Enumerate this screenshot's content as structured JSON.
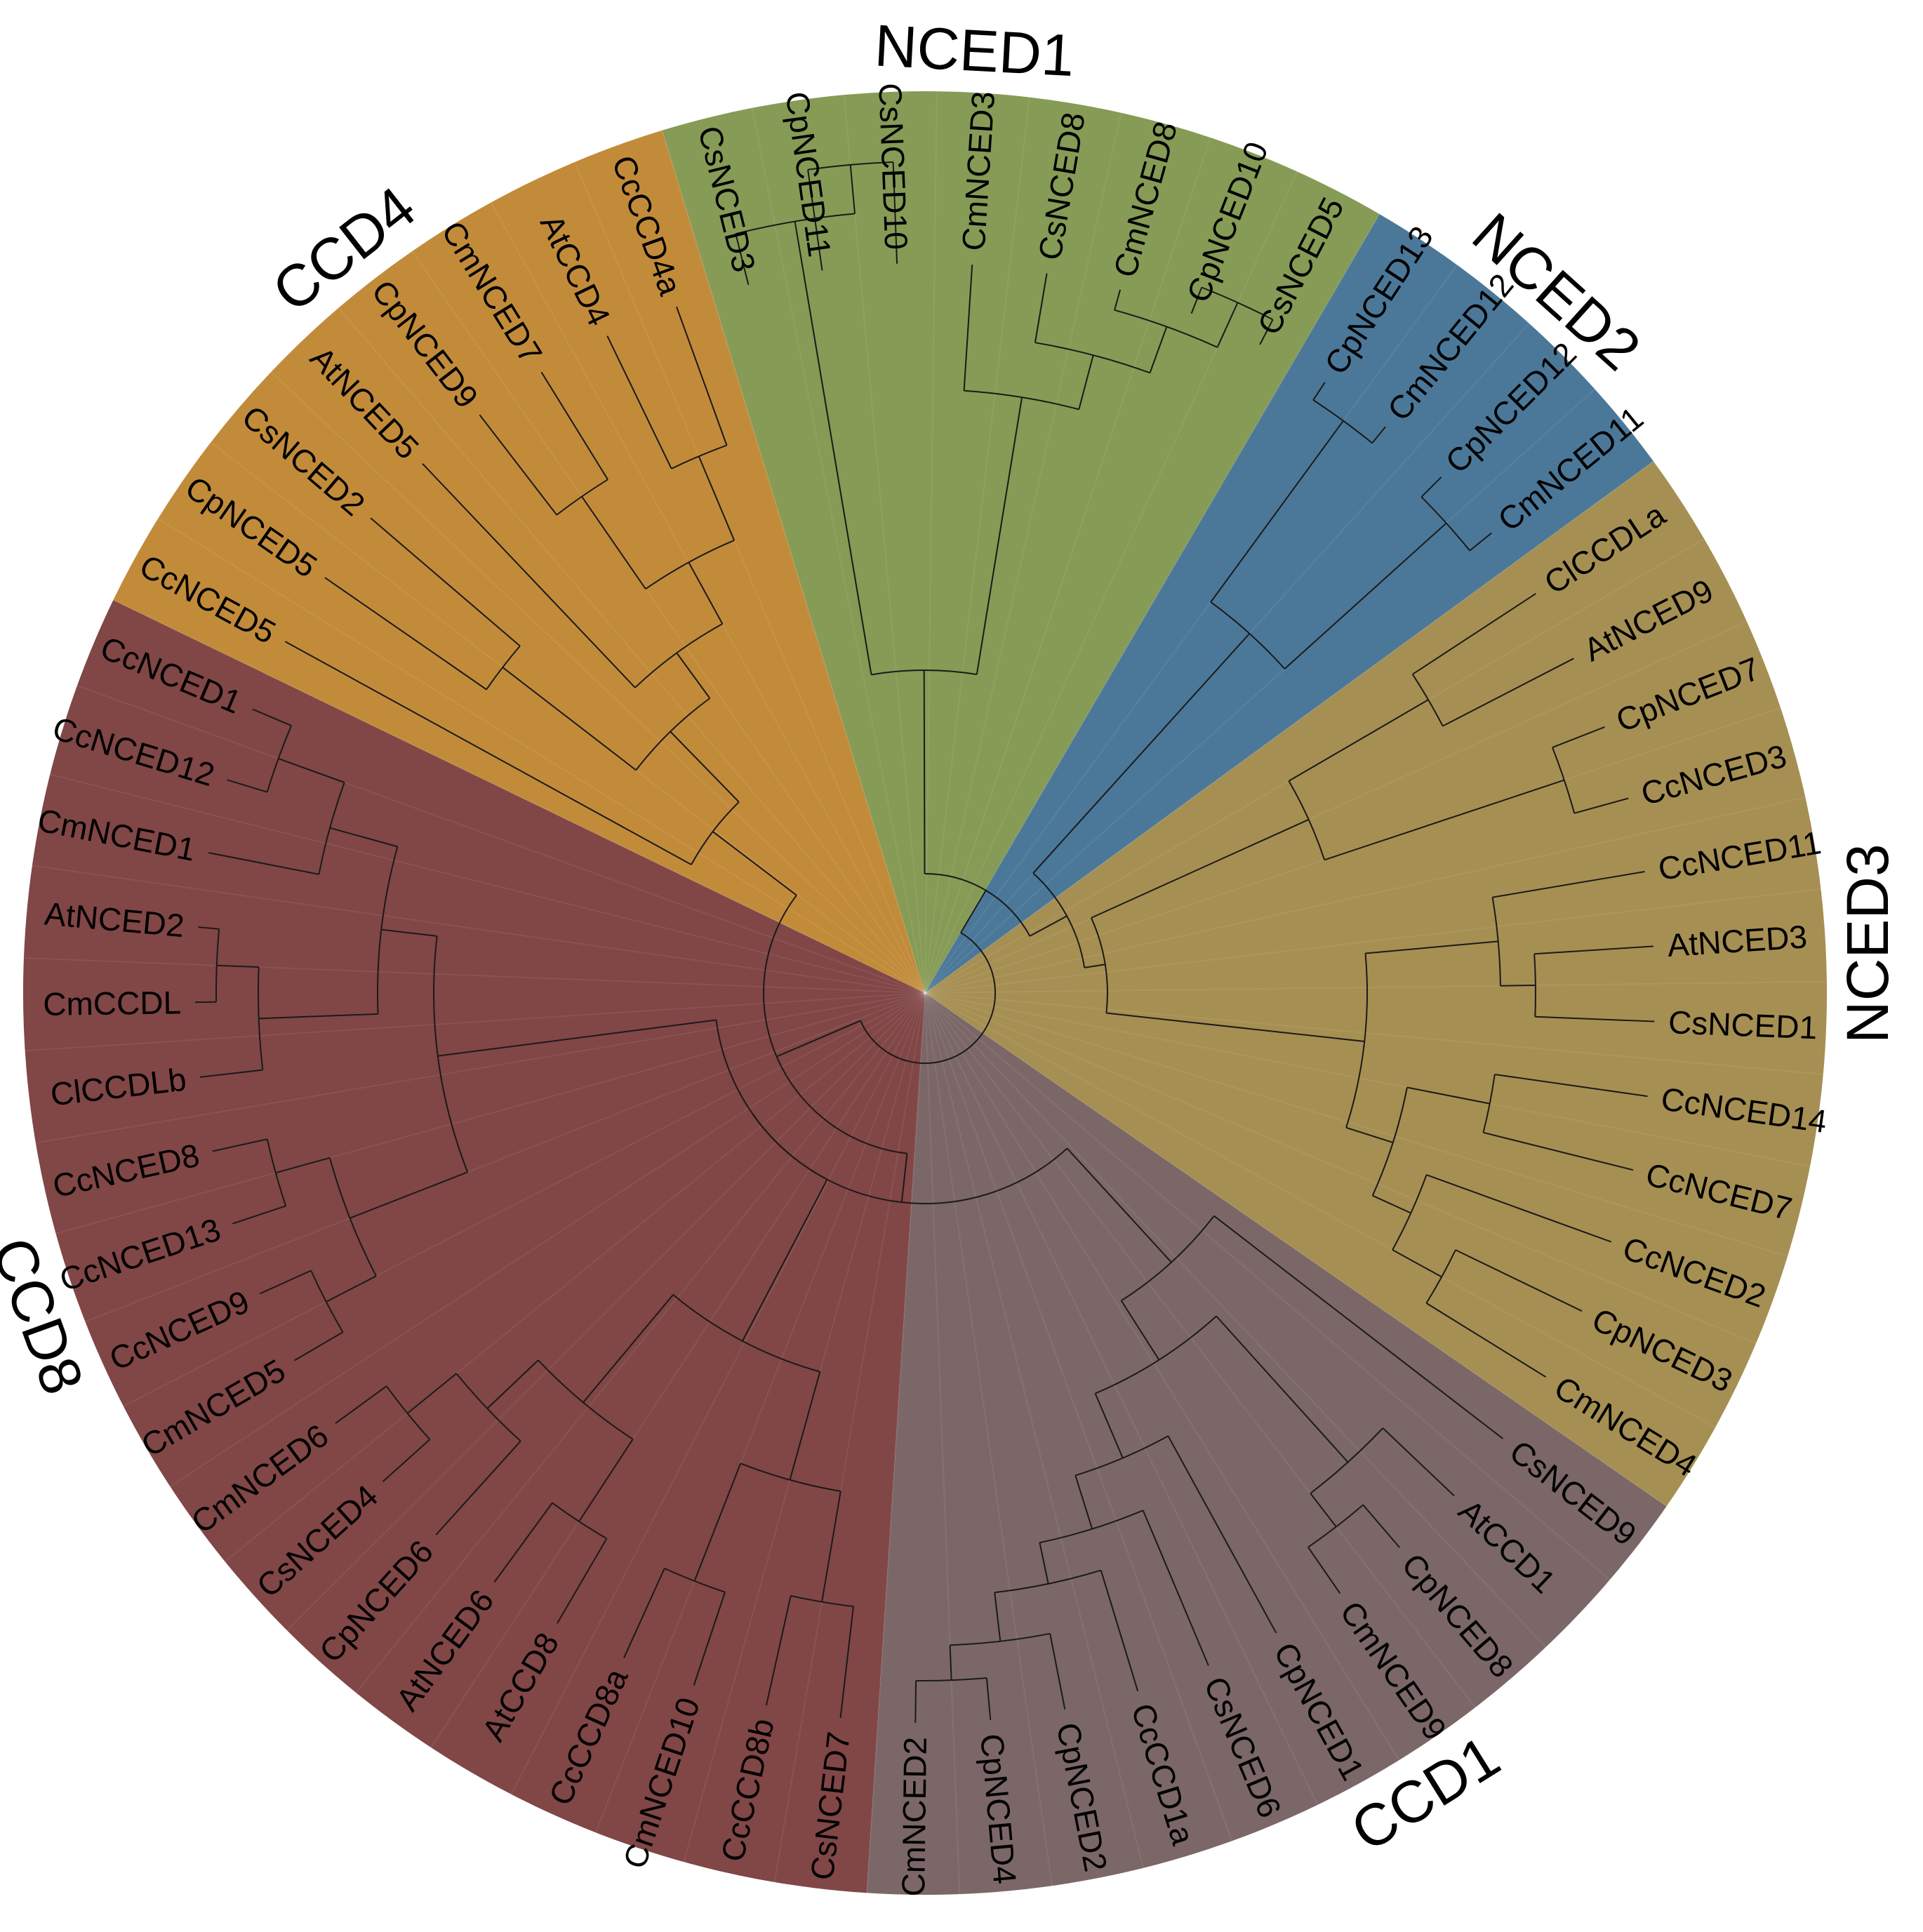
{
  "figure": {
    "type": "circular phylogenetic tree",
    "description_colors_note": "clade sector fill colors",
    "clades": [
      {
        "id": "nced1",
        "name": "NCED1",
        "color": "#869b55",
        "leaves": [
          "CsNCED3",
          "CpNCED11",
          "CsNCED10",
          "CmNCED3",
          "CsNCED8",
          "CmNCED8",
          "CpNCED10",
          "CsNCED5"
        ]
      },
      {
        "id": "nced2",
        "name": "NCED2",
        "color": "#4b7899",
        "leaves": [
          "CpNCED13",
          "CmNCED12",
          "CpNCED12",
          "CmNCED11"
        ]
      },
      {
        "id": "nced3",
        "name": "NCED3",
        "color": "#a68f52",
        "leaves": [
          "ClCCDLa",
          "AtNCED9",
          "CpNCED7",
          "CcNCED3",
          "CcNCED11",
          "AtNCED3",
          "CsNCED1",
          "CcNCED14",
          "CcNCED7",
          "CcNCED2",
          "CpNCED3",
          "CmNCED4"
        ]
      },
      {
        "id": "ccd1",
        "name": "CCD1",
        "color": "#7b6767",
        "leaves": [
          "CsNCED9",
          "AtCCD1",
          "CpNCED8",
          "CmNCED9",
          "CpNCED1",
          "CsNCED6",
          "CcCCD1a",
          "CpNCED2",
          "CpNCED4",
          "CmNCED2"
        ]
      },
      {
        "id": "ccd8",
        "name": "CCD8",
        "color": "#814646",
        "leaves": [
          "CsNCED7",
          "CcCCD8b",
          "CmNCED10",
          "CcCCD8a",
          "AtCCD8",
          "AtNCED6",
          "CpNCED6",
          "CsNCED4",
          "CmNCED6",
          "CmNCED5",
          "CcNCED9",
          "CcNCED13",
          "CcNCED8",
          "ClCCDLb",
          "CmCCDL",
          "AtNCED2",
          "CmNCED1",
          "CcNCED12",
          "CcNCED1"
        ]
      },
      {
        "id": "ccd4",
        "name": "CCD4",
        "color": "#c28b3a",
        "leaves": [
          "CcNCED5",
          "CpNCED5",
          "CsNCED2",
          "AtNCED5",
          "CpNCED9",
          "CmNCED7",
          "AtCCD4",
          "CcCCD4a"
        ]
      }
    ]
  }
}
